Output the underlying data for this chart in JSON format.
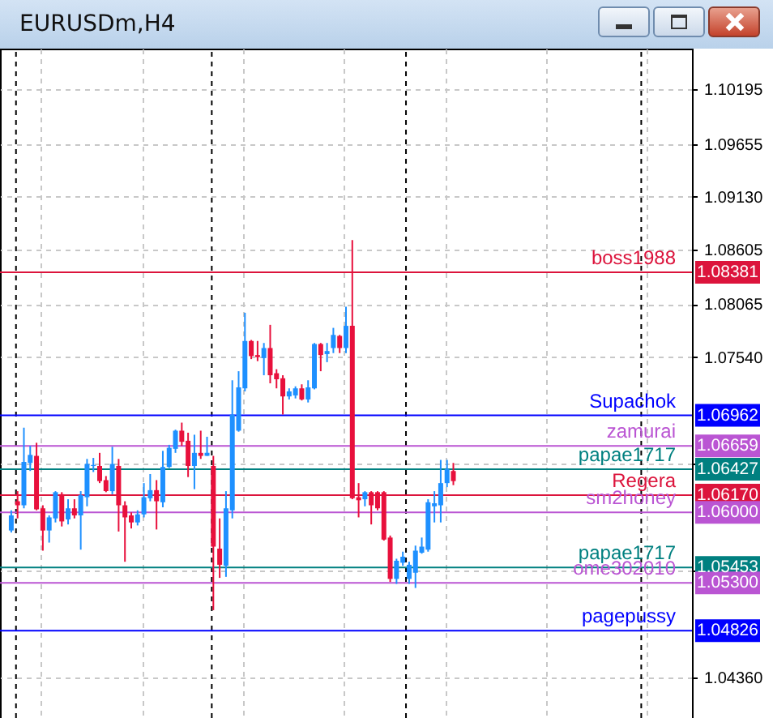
{
  "chart_data": {
    "type": "candlestick",
    "title": "EURUSDm,H4",
    "categories": [
      null,
      null,
      null,
      null,
      null,
      null,
      null,
      null,
      null,
      null,
      null,
      null,
      null,
      null,
      null,
      null,
      null,
      null,
      null,
      null,
      null,
      null,
      null,
      null,
      null,
      null,
      null,
      null,
      null,
      null,
      null,
      null,
      null,
      null,
      null,
      null,
      null,
      null,
      null,
      null,
      null,
      null,
      null,
      null,
      null,
      null,
      null,
      null,
      null,
      null,
      null,
      null,
      null,
      null,
      null,
      null,
      null,
      null,
      null,
      null,
      null,
      null,
      null,
      null,
      null,
      null,
      null,
      null,
      null,
      null,
      null,
      null,
      null,
      null,
      null,
      null,
      null,
      null,
      null,
      null,
      null,
      null,
      null,
      null,
      null,
      null,
      null,
      null,
      null,
      null,
      null,
      null,
      null,
      null,
      null,
      null,
      null,
      null,
      null,
      null,
      null,
      null,
      null,
      null,
      null,
      null,
      null
    ],
    "ohlc": [
      [
        1.0582,
        1.0602,
        1.058,
        1.0597
      ],
      [
        1.0611,
        1.0621,
        1.0594,
        1.0607
      ],
      [
        1.0607,
        1.0684,
        1.0604,
        1.065
      ],
      [
        1.0649,
        1.0666,
        1.0641,
        1.0657
      ],
      [
        1.0656,
        1.0669,
        1.0602,
        1.0603
      ],
      [
        1.0604,
        1.0607,
        1.0562,
        1.0582
      ],
      [
        1.0582,
        1.0597,
        1.057,
        1.0595
      ],
      [
        1.0594,
        1.0621,
        1.059,
        1.062
      ],
      [
        1.0618,
        1.062,
        1.0586,
        1.0591
      ],
      [
        1.0593,
        1.0613,
        1.0588,
        1.0604
      ],
      [
        1.0604,
        1.0613,
        1.0594,
        1.0597
      ],
      [
        1.0597,
        1.0621,
        1.0563,
        1.0617
      ],
      [
        1.0615,
        1.0653,
        1.0606,
        1.0648
      ],
      [
        1.0646,
        1.0654,
        1.064,
        1.0647
      ],
      [
        1.0646,
        1.0659,
        1.0629,
        1.0631
      ],
      [
        1.0632,
        1.0636,
        1.062,
        1.0621
      ],
      [
        1.0621,
        1.0665,
        1.0618,
        1.0648
      ],
      [
        1.0646,
        1.0653,
        1.0581,
        1.0607
      ],
      [
        1.0607,
        1.0611,
        1.0551,
        1.0595
      ],
      [
        1.0597,
        1.06,
        1.0584,
        1.059
      ],
      [
        1.059,
        1.0602,
        1.0587,
        1.0598
      ],
      [
        1.0598,
        1.0629,
        1.0595,
        1.0615
      ],
      [
        1.0614,
        1.0638,
        1.0611,
        1.0622
      ],
      [
        1.0622,
        1.0632,
        1.0583,
        1.0611
      ],
      [
        1.061,
        1.0661,
        1.0605,
        1.0645
      ],
      [
        1.0645,
        1.0667,
        1.0644,
        1.0664
      ],
      [
        1.0663,
        1.0682,
        1.0659,
        1.0681
      ],
      [
        1.0681,
        1.0689,
        1.0666,
        1.067
      ],
      [
        1.0671,
        1.0679,
        1.0635,
        1.0646
      ],
      [
        1.0646,
        1.0677,
        1.0623,
        1.0659
      ],
      [
        1.0659,
        1.0681,
        1.0653,
        1.0656
      ],
      [
        1.0656,
        1.0675,
        1.0656,
        1.0659
      ],
      [
        1.0646,
        1.0656,
        1.0503,
        1.0566
      ],
      [
        1.0564,
        1.0594,
        1.0535,
        1.0548
      ],
      [
        1.0547,
        1.0621,
        1.0536,
        1.0604
      ],
      [
        1.0602,
        1.0731,
        1.0594,
        1.0697
      ],
      [
        1.0681,
        1.074,
        1.068,
        1.0724
      ],
      [
        1.0723,
        1.0798,
        1.072,
        1.077
      ],
      [
        1.077,
        1.0771,
        1.0752,
        1.0755
      ],
      [
        1.0756,
        1.077,
        1.075,
        1.0754
      ],
      [
        1.0753,
        1.0768,
        1.0736,
        1.0763
      ],
      [
        1.0763,
        1.0786,
        1.0728,
        1.0736
      ],
      [
        1.0738,
        1.0742,
        1.0723,
        1.0732
      ],
      [
        1.0733,
        1.0736,
        1.0697,
        1.0715
      ],
      [
        1.0715,
        1.0723,
        1.0712,
        1.072
      ],
      [
        1.0716,
        1.0725,
        1.0713,
        1.0723
      ],
      [
        1.0723,
        1.0727,
        1.0711,
        1.0712
      ],
      [
        1.0712,
        1.0731,
        1.0709,
        1.0724
      ],
      [
        1.0723,
        1.0768,
        1.0722,
        1.0767
      ],
      [
        1.0767,
        1.0768,
        1.074,
        1.0756
      ],
      [
        1.0757,
        1.0768,
        1.0749,
        1.076
      ],
      [
        1.0763,
        1.0783,
        1.0758,
        1.0776
      ],
      [
        1.0775,
        1.0776,
        1.0758,
        1.0763
      ],
      [
        1.0763,
        1.0804,
        1.0758,
        1.0785
      ],
      [
        1.0785,
        1.087,
        1.0613,
        1.0614
      ],
      [
        1.0615,
        1.0629,
        1.0595,
        1.0612
      ],
      [
        1.0613,
        1.0621,
        1.0606,
        1.062
      ],
      [
        1.062,
        1.0621,
        1.0588,
        1.0607
      ],
      [
        1.062,
        1.0621,
        1.0602,
        1.0604
      ],
      [
        1.062,
        1.0621,
        1.0572,
        1.0573
      ],
      [
        1.0575,
        1.0577,
        1.0531,
        1.0534
      ],
      [
        1.0534,
        1.0554,
        1.0529,
        1.0552
      ],
      [
        1.055,
        1.0561,
        1.0547,
        1.0556
      ],
      [
        1.0534,
        1.0551,
        1.0529,
        1.0548
      ],
      [
        1.054,
        1.0567,
        1.0525,
        1.0562
      ],
      [
        1.056,
        1.0575,
        1.0559,
        1.0566
      ],
      [
        1.0563,
        1.0613,
        1.0561,
        1.061
      ],
      [
        1.0606,
        1.0621,
        1.059,
        1.0609
      ],
      [
        1.0607,
        1.0652,
        1.059,
        1.0629
      ],
      [
        1.0629,
        1.0652,
        1.0625,
        1.0643
      ],
      [
        1.0641,
        1.0649,
        1.0627,
        1.0631
      ],
      null,
      null,
      null,
      null,
      null,
      null,
      null,
      null,
      null,
      null,
      null,
      null,
      null,
      null,
      null,
      null,
      null,
      null,
      null,
      null,
      null,
      null,
      null,
      null,
      null,
      null,
      null,
      null,
      null,
      null,
      null,
      null,
      null,
      null,
      null,
      null
    ],
    "colors": [
      "#1e90ff",
      "#e8103c",
      "#1e90ff",
      "#1e90ff",
      "#e8103c",
      "#e8103c",
      "#1e90ff",
      "#1e90ff",
      "#e8103c",
      "#1e90ff",
      "#e8103c",
      "#1e90ff",
      "#1e90ff",
      "#1e90ff",
      "#e8103c",
      "#e8103c",
      "#1e90ff",
      "#e8103c",
      "#e8103c",
      "#e8103c",
      "#1e90ff",
      "#1e90ff",
      "#1e90ff",
      "#e8103c",
      "#1e90ff",
      "#1e90ff",
      "#1e90ff",
      "#e8103c",
      "#e8103c",
      "#1e90ff",
      "#e8103c",
      "#1e90ff",
      "#e8103c",
      "#e8103c",
      "#1e90ff",
      "#1e90ff",
      "#1e90ff",
      "#1e90ff",
      "#e8103c",
      "#e8103c",
      "#1e90ff",
      "#e8103c",
      "#e8103c",
      "#e8103c",
      "#1e90ff",
      "#1e90ff",
      "#e8103c",
      "#1e90ff",
      "#1e90ff",
      "#e8103c",
      "#1e90ff",
      "#1e90ff",
      "#e8103c",
      "#1e90ff",
      "#e8103c",
      "#e8103c",
      "#1e90ff",
      "#e8103c",
      "#e8103c",
      "#e8103c",
      "#e8103c",
      "#1e90ff",
      "#1e90ff",
      "#1e90ff",
      "#1e90ff",
      "#1e90ff",
      "#1e90ff",
      "#1e90ff",
      "#1e90ff",
      "#1e90ff",
      "#e8103c",
      null,
      null,
      null,
      null,
      null,
      null,
      null,
      null,
      null,
      null,
      null,
      null,
      null,
      null,
      null,
      null,
      null,
      null,
      null,
      null,
      null,
      null,
      null,
      null,
      null,
      null,
      null,
      null,
      null,
      null,
      null,
      null,
      null,
      null,
      null,
      null
    ],
    "ylim": [
      1.0396,
      1.106
    ],
    "yticks": [
      1.10195,
      1.09655,
      {
        "value": 1.0913,
        "label": "1.09130"
      },
      1.08605,
      1.08065,
      {
        "value": 1.0754,
        "label": "1.07540"
      },
      {
        "value": 1.0649,
        "label": null
      },
      {
        "value": 1.0543,
        "label": null
      },
      {
        "value": 1.0436,
        "label": "1.04360"
      }
    ],
    "annotations": [
      {
        "text": "1.08381",
        "y": 1.08381
      },
      {
        "text": "1.06962",
        "y": 1.06962
      },
      {
        "text": "1.06659",
        "y": 1.06659
      },
      {
        "text": "1.06427",
        "y": 1.06427
      },
      {
        "text": "1.06170",
        "y": 1.0617
      },
      {
        "text": "1.06000",
        "y": 1.06
      },
      {
        "text": "1.05453",
        "y": 1.05453
      },
      {
        "text": "1.05300",
        "y": 1.053
      },
      {
        "text": "1.04826",
        "y": 1.04826
      }
    ],
    "grid": true,
    "tick_labels": "y",
    "ref_lines": [
      {
        "axis": "y",
        "value": 1.08381,
        "label": "boss1988",
        "color": "#dc143c"
      },
      {
        "axis": "y",
        "value": 1.06962,
        "label": "Supachok",
        "color": "#0000ff"
      },
      {
        "axis": "y",
        "value": 1.06659,
        "label": "zamurai",
        "color": "#ba55d3"
      },
      {
        "axis": "y",
        "value": 1.06427,
        "label": "papae1717",
        "color": "#008080"
      },
      {
        "axis": "y",
        "value": 1.0617,
        "label": "Regera",
        "color": "#dc143c"
      },
      {
        "axis": "y",
        "value": 1.06,
        "label": "sm2honey",
        "color": "#ba55d3"
      },
      {
        "axis": "y",
        "value": 1.05453,
        "label": "papae1717",
        "color": "#008080"
      },
      {
        "axis": "y",
        "value": 1.053,
        "label": "ome302010",
        "color": "#ba55d3"
      },
      {
        "axis": "y",
        "value": 1.04826,
        "label": "pagepussy",
        "color": "#0000ff"
      }
    ]
  }
}
